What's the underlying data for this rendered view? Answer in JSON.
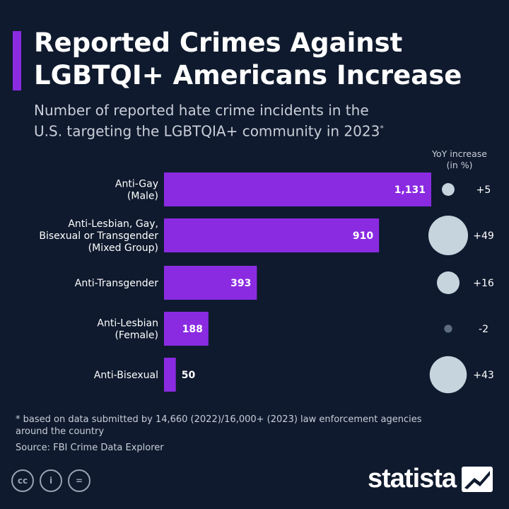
{
  "header": {
    "title": "Reported Crimes Against\nLGBTQI+ Americans Increase",
    "subtitle": "Number of reported hate crime incidents in the\nU.S. targeting the LGBTQIA+ community in 2023",
    "subtitle_mark": "*"
  },
  "chart_data": {
    "type": "bar",
    "orientation": "horizontal",
    "categories": [
      "Anti-Gay\n(Male)",
      "Anti-Lesbian, Gay,\nBisexual or Transgender\n(Mixed Group)",
      "Anti-Transgender",
      "Anti-Lesbian\n(Female)",
      "Anti-Bisexual"
    ],
    "values": [
      1131,
      910,
      393,
      188,
      50
    ],
    "value_labels": [
      "1,131",
      "910",
      "393",
      "188",
      "50"
    ],
    "yoy": {
      "title": "YoY increase\n(in %)",
      "values": [
        5,
        49,
        16,
        -2,
        43
      ],
      "labels": [
        "+5",
        "+49",
        "+16",
        "-2",
        "+43"
      ]
    },
    "colors": {
      "bar": "#8a2be2",
      "bubble": "#c6d4dd",
      "bubble_negative": "#5d6c80",
      "background": "#0f1a2e"
    }
  },
  "footer": {
    "footnote": "* based on data submitted by 14,660 (2022)/16,000+ (2023) law enforcement agencies\n   around the country",
    "source": "Source: FBI Crime Data Explorer",
    "brand": "statista",
    "cc_icons": [
      "cc-icon",
      "attribution-icon",
      "no-derivatives-icon"
    ],
    "cc_glyphs": [
      "cc",
      "i",
      "="
    ]
  }
}
